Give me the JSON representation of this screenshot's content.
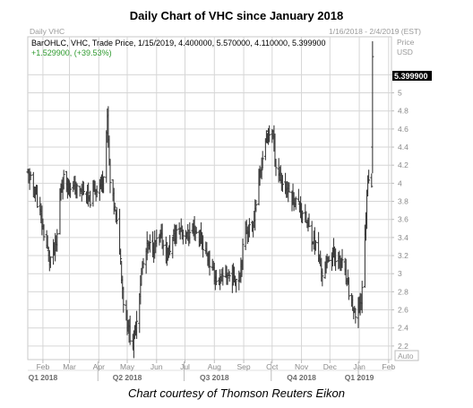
{
  "title": "Daily Chart of VHC since January 2018",
  "caption": "Chart courtesy of Thomson Reuters Eikon",
  "panel": {
    "name": "Daily VHC",
    "date_range": "1/16/2018 - 2/4/2019 (EST)",
    "price_label_1": "Price",
    "price_label_2": "USD",
    "ohlc_line": "BarOHLC, VHC, Trade Price, 1/15/2019, 4.400000, 5.570000, 4.110000, 5.399900",
    "change_line": "+1.529900, (+39.53%)",
    "last_price": "5.399900",
    "auto_label": "Auto"
  },
  "colors": {
    "bars": "#3c3c3c",
    "grid": "#d6d6d6",
    "change": "#2e9a2e",
    "price_tag": "#000000"
  },
  "chart_data": {
    "type": "ohlc_bar",
    "y_range": [
      2.05,
      5.62
    ],
    "y_ticks": [
      "5.2",
      "5",
      "4.8",
      "4.6",
      "4.4",
      "4.2",
      "4",
      "3.8",
      "3.6",
      "3.4",
      "3.2",
      "3",
      "2.8",
      "2.6",
      "2.4",
      "2.2"
    ],
    "x_start": "2018-01-16",
    "x_end": "2019-02-04",
    "month_ticks": [
      {
        "label": "Feb",
        "date": "2018-02-01"
      },
      {
        "label": "Mar",
        "date": "2018-03-01"
      },
      {
        "label": "Apr",
        "date": "2018-04-01"
      },
      {
        "label": "May",
        "date": "2018-05-01"
      },
      {
        "label": "Jun",
        "date": "2018-06-01"
      },
      {
        "label": "Jul",
        "date": "2018-07-01"
      },
      {
        "label": "Aug",
        "date": "2018-08-01"
      },
      {
        "label": "Sep",
        "date": "2018-09-01"
      },
      {
        "label": "Oct",
        "date": "2018-10-01"
      },
      {
        "label": "Nov",
        "date": "2018-11-01"
      },
      {
        "label": "Dec",
        "date": "2018-12-01"
      },
      {
        "label": "Jan",
        "date": "2019-01-01"
      },
      {
        "label": "Feb",
        "date": "2019-02-01"
      }
    ],
    "quarter_labels": [
      {
        "label": "Q1 2018",
        "date": "2018-02-01"
      },
      {
        "label": "Q2 2018",
        "date": "2018-05-01"
      },
      {
        "label": "Q3 2018",
        "date": "2018-08-01"
      },
      {
        "label": "Q4 2018",
        "date": "2018-11-01"
      },
      {
        "label": "Q1 2019",
        "date": "2019-01-01"
      }
    ],
    "quarter_dividers": [
      "2018-04-01",
      "2018-07-01",
      "2018-10-01",
      "2019-01-01"
    ],
    "closes_approx": [
      {
        "date": "2018-01-16",
        "close": 4.1
      },
      {
        "date": "2018-01-24",
        "close": 3.9
      },
      {
        "date": "2018-02-02",
        "close": 3.45
      },
      {
        "date": "2018-02-08",
        "close": 3.15
      },
      {
        "date": "2018-02-15",
        "close": 3.3
      },
      {
        "date": "2018-02-20",
        "close": 3.95
      },
      {
        "date": "2018-02-23",
        "close": 4.05
      },
      {
        "date": "2018-03-05",
        "close": 3.95
      },
      {
        "date": "2018-03-15",
        "close": 3.9
      },
      {
        "date": "2018-03-22",
        "close": 3.8
      },
      {
        "date": "2018-03-29",
        "close": 3.95
      },
      {
        "date": "2018-04-05",
        "close": 4.0
      },
      {
        "date": "2018-04-10",
        "close": 4.7
      },
      {
        "date": "2018-04-13",
        "close": 4.0
      },
      {
        "date": "2018-04-18",
        "close": 3.7
      },
      {
        "date": "2018-04-23",
        "close": 3.3
      },
      {
        "date": "2018-04-27",
        "close": 2.7
      },
      {
        "date": "2018-05-02",
        "close": 2.4
      },
      {
        "date": "2018-05-07",
        "close": 2.2
      },
      {
        "date": "2018-05-11",
        "close": 2.5
      },
      {
        "date": "2018-05-16",
        "close": 3.0
      },
      {
        "date": "2018-05-22",
        "close": 3.3
      },
      {
        "date": "2018-05-29",
        "close": 3.3
      },
      {
        "date": "2018-06-05",
        "close": 3.4
      },
      {
        "date": "2018-06-12",
        "close": 3.2
      },
      {
        "date": "2018-06-19",
        "close": 3.4
      },
      {
        "date": "2018-06-26",
        "close": 3.5
      },
      {
        "date": "2018-07-03",
        "close": 3.4
      },
      {
        "date": "2018-07-10",
        "close": 3.5
      },
      {
        "date": "2018-07-17",
        "close": 3.4
      },
      {
        "date": "2018-07-24",
        "close": 3.2
      },
      {
        "date": "2018-07-31",
        "close": 3.0
      },
      {
        "date": "2018-08-06",
        "close": 2.9
      },
      {
        "date": "2018-08-13",
        "close": 3.0
      },
      {
        "date": "2018-08-20",
        "close": 2.95
      },
      {
        "date": "2018-08-27",
        "close": 2.95
      },
      {
        "date": "2018-09-03",
        "close": 3.5
      },
      {
        "date": "2018-09-10",
        "close": 3.5
      },
      {
        "date": "2018-09-17",
        "close": 4.0
      },
      {
        "date": "2018-09-24",
        "close": 4.5
      },
      {
        "date": "2018-10-01",
        "close": 4.6
      },
      {
        "date": "2018-10-05",
        "close": 4.2
      },
      {
        "date": "2018-10-12",
        "close": 4.0
      },
      {
        "date": "2018-10-19",
        "close": 3.9
      },
      {
        "date": "2018-10-26",
        "close": 3.8
      },
      {
        "date": "2018-11-02",
        "close": 3.7
      },
      {
        "date": "2018-11-09",
        "close": 3.5
      },
      {
        "date": "2018-11-16",
        "close": 3.3
      },
      {
        "date": "2018-11-23",
        "close": 3.0
      },
      {
        "date": "2018-11-30",
        "close": 3.2
      },
      {
        "date": "2018-12-07",
        "close": 3.2
      },
      {
        "date": "2018-12-14",
        "close": 3.1
      },
      {
        "date": "2018-12-21",
        "close": 2.8
      },
      {
        "date": "2018-12-28",
        "close": 2.5
      },
      {
        "date": "2019-01-03",
        "close": 2.7
      },
      {
        "date": "2019-01-07",
        "close": 3.4
      },
      {
        "date": "2019-01-10",
        "close": 4.1
      },
      {
        "date": "2019-01-14",
        "close": 4.0
      },
      {
        "date": "2019-01-15",
        "open": 4.4,
        "high": 5.57,
        "low": 4.11,
        "close": 5.3999
      }
    ]
  }
}
